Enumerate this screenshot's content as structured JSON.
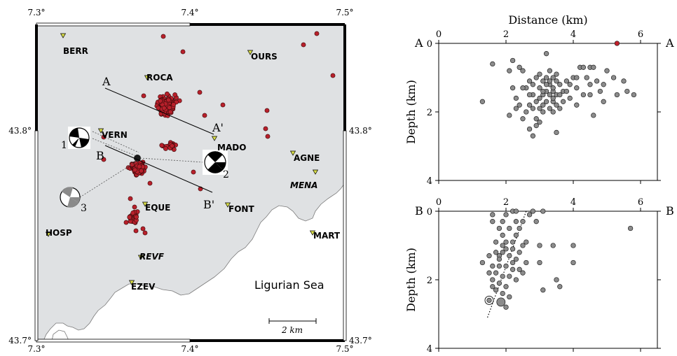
{
  "map": {
    "top_lon_labels": [
      "7.3°",
      "7.4°",
      "7.5°"
    ],
    "bottom_lon_labels": [
      "7.3°",
      "7.4°",
      "7.5°"
    ],
    "left_lat_labels": [
      "43.8°",
      "43.7°"
    ],
    "right_lat_labels": [
      "43.8°",
      "43.7°"
    ],
    "sea_label": "Ligurian Sea",
    "scale_label": "2 km",
    "land_color": "#dfe1e3",
    "sea_color": "#ffffff",
    "event_color": "#b8202b",
    "station_color": "#d8dd48",
    "stations": [
      {
        "name": "BERR",
        "italic": false
      },
      {
        "name": "OURS",
        "italic": false
      },
      {
        "name": "ROCA",
        "italic": false
      },
      {
        "name": "VERN",
        "italic": false
      },
      {
        "name": "MADO",
        "italic": false
      },
      {
        "name": "AGNE",
        "italic": false
      },
      {
        "name": "MENA",
        "italic": true
      },
      {
        "name": "EQUE",
        "italic": false
      },
      {
        "name": "FONT",
        "italic": false
      },
      {
        "name": "HOSP",
        "italic": false
      },
      {
        "name": "MART",
        "italic": false
      },
      {
        "name": "REVF",
        "italic": true
      },
      {
        "name": "EZEV",
        "italic": false
      }
    ],
    "profile_labels": [
      "A",
      "A'",
      "B",
      "B'"
    ],
    "mechanism_labels": [
      "1",
      "2",
      "3"
    ]
  },
  "chart_data": [
    {
      "type": "scatter",
      "title": "",
      "xlabel": "Distance (km)",
      "ylabel": "Depth (km)",
      "xlim": [
        0,
        6.5
      ],
      "ylim": [
        4,
        0
      ],
      "x_ticks": [
        "0",
        "2",
        "4",
        "6"
      ],
      "y_ticks": [
        "0",
        "2",
        "4"
      ],
      "left_label": "A",
      "right_label": "A",
      "point_color": "#8c8c8c",
      "highlight_color": "#c2202b",
      "highlight_points": [
        {
          "x": 5.3,
          "y": 0.0
        }
      ],
      "points": [
        {
          "x": 1.6,
          "y": 0.6
        },
        {
          "x": 1.3,
          "y": 1.7
        },
        {
          "x": 2.1,
          "y": 0.8
        },
        {
          "x": 2.2,
          "y": 0.5
        },
        {
          "x": 2.4,
          "y": 0.7
        },
        {
          "x": 2.5,
          "y": 0.8
        },
        {
          "x": 2.6,
          "y": 1.3
        },
        {
          "x": 2.7,
          "y": 1.1
        },
        {
          "x": 2.8,
          "y": 1.5
        },
        {
          "x": 2.9,
          "y": 1.0
        },
        {
          "x": 3.0,
          "y": 0.9
        },
        {
          "x": 3.1,
          "y": 1.1
        },
        {
          "x": 3.2,
          "y": 0.3
        },
        {
          "x": 3.3,
          "y": 0.8
        },
        {
          "x": 3.4,
          "y": 1.0
        },
        {
          "x": 3.5,
          "y": 0.9
        },
        {
          "x": 3.6,
          "y": 1.2
        },
        {
          "x": 3.7,
          "y": 1.4
        },
        {
          "x": 3.8,
          "y": 1.1
        },
        {
          "x": 3.9,
          "y": 1.2
        },
        {
          "x": 4.0,
          "y": 1.0
        },
        {
          "x": 4.1,
          "y": 1.3
        },
        {
          "x": 4.2,
          "y": 0.7
        },
        {
          "x": 4.3,
          "y": 0.7
        },
        {
          "x": 4.4,
          "y": 1.0
        },
        {
          "x": 4.5,
          "y": 0.7
        },
        {
          "x": 4.6,
          "y": 0.7
        },
        {
          "x": 4.7,
          "y": 1.1
        },
        {
          "x": 4.8,
          "y": 1.4
        },
        {
          "x": 4.9,
          "y": 1.2
        },
        {
          "x": 5.0,
          "y": 0.8
        },
        {
          "x": 5.2,
          "y": 1.0
        },
        {
          "x": 5.3,
          "y": 1.5
        },
        {
          "x": 5.5,
          "y": 1.1
        },
        {
          "x": 5.6,
          "y": 1.4
        },
        {
          "x": 5.8,
          "y": 1.5
        },
        {
          "x": 3.0,
          "y": 1.3
        },
        {
          "x": 3.0,
          "y": 1.6
        },
        {
          "x": 3.1,
          "y": 1.8
        },
        {
          "x": 3.2,
          "y": 1.4
        },
        {
          "x": 3.2,
          "y": 1.7
        },
        {
          "x": 3.3,
          "y": 1.2
        },
        {
          "x": 3.3,
          "y": 1.5
        },
        {
          "x": 3.3,
          "y": 1.9
        },
        {
          "x": 3.4,
          "y": 1.4
        },
        {
          "x": 3.4,
          "y": 1.7
        },
        {
          "x": 3.5,
          "y": 1.5
        },
        {
          "x": 3.5,
          "y": 1.8
        },
        {
          "x": 3.1,
          "y": 2.0
        },
        {
          "x": 3.4,
          "y": 2.0
        },
        {
          "x": 3.6,
          "y": 1.9
        },
        {
          "x": 3.7,
          "y": 1.7
        },
        {
          "x": 2.4,
          "y": 1.8
        },
        {
          "x": 2.6,
          "y": 2.0
        },
        {
          "x": 2.7,
          "y": 1.8
        },
        {
          "x": 2.8,
          "y": 1.9
        },
        {
          "x": 2.9,
          "y": 2.2
        },
        {
          "x": 2.9,
          "y": 2.4
        },
        {
          "x": 2.8,
          "y": 2.7
        },
        {
          "x": 2.7,
          "y": 2.5
        },
        {
          "x": 3.0,
          "y": 2.3
        },
        {
          "x": 2.5,
          "y": 2.2
        },
        {
          "x": 2.1,
          "y": 2.1
        },
        {
          "x": 3.5,
          "y": 2.6
        },
        {
          "x": 2.3,
          "y": 1.9
        },
        {
          "x": 4.1,
          "y": 1.8
        },
        {
          "x": 4.6,
          "y": 2.1
        },
        {
          "x": 4.5,
          "y": 1.5
        },
        {
          "x": 4.9,
          "y": 1.7
        },
        {
          "x": 4.3,
          "y": 1.5
        },
        {
          "x": 4.5,
          "y": 1.2
        },
        {
          "x": 3.9,
          "y": 1.6
        },
        {
          "x": 3.6,
          "y": 1.5
        },
        {
          "x": 4.1,
          "y": 1.0
        },
        {
          "x": 3.8,
          "y": 1.4
        },
        {
          "x": 2.9,
          "y": 1.7
        },
        {
          "x": 2.7,
          "y": 1.5
        },
        {
          "x": 2.5,
          "y": 1.3
        },
        {
          "x": 2.3,
          "y": 1.6
        },
        {
          "x": 2.2,
          "y": 1.3
        },
        {
          "x": 3.1,
          "y": 1.5
        },
        {
          "x": 3.2,
          "y": 1.0
        },
        {
          "x": 3.0,
          "y": 1.9
        },
        {
          "x": 3.1,
          "y": 1.4
        },
        {
          "x": 3.3,
          "y": 1.1
        },
        {
          "x": 3.4,
          "y": 1.3
        },
        {
          "x": 3.5,
          "y": 1.1
        },
        {
          "x": 3.4,
          "y": 1.6
        },
        {
          "x": 3.2,
          "y": 1.2
        },
        {
          "x": 2.8,
          "y": 1.2
        }
      ]
    },
    {
      "type": "scatter",
      "title": "",
      "xlabel": "",
      "ylabel": "Depth (km)",
      "xlim": [
        0,
        6.5
      ],
      "ylim": [
        4,
        0
      ],
      "x_ticks": [
        "0",
        "2",
        "4",
        "6"
      ],
      "y_ticks": [
        "0",
        "2",
        "4"
      ],
      "left_label": "B",
      "right_label": "B",
      "point_color": "#8c8c8c",
      "trend_line": [
        {
          "x": 1.45,
          "y": 3.1
        },
        {
          "x": 2.6,
          "y": 0.0
        }
      ],
      "large_points": [
        {
          "x": 1.85,
          "y": 2.65
        }
      ],
      "ringed_points": [
        {
          "x": 1.5,
          "y": 2.6
        }
      ],
      "points": [
        {
          "x": 1.6,
          "y": 0.1
        },
        {
          "x": 1.6,
          "y": 0.3
        },
        {
          "x": 1.8,
          "y": 0.5
        },
        {
          "x": 1.9,
          "y": 0.3
        },
        {
          "x": 2.0,
          "y": 0.1
        },
        {
          "x": 2.2,
          "y": 0.0
        },
        {
          "x": 2.5,
          "y": 0.3
        },
        {
          "x": 2.4,
          "y": 0.5
        },
        {
          "x": 2.3,
          "y": 0.0
        },
        {
          "x": 2.8,
          "y": 0.0
        },
        {
          "x": 2.9,
          "y": 0.3
        },
        {
          "x": 3.1,
          "y": 0.0
        },
        {
          "x": 2.7,
          "y": 0.1
        },
        {
          "x": 2.3,
          "y": 0.7
        },
        {
          "x": 2.2,
          "y": 0.9
        },
        {
          "x": 2.0,
          "y": 0.9
        },
        {
          "x": 1.9,
          "y": 1.0
        },
        {
          "x": 1.7,
          "y": 1.2
        },
        {
          "x": 1.8,
          "y": 1.3
        },
        {
          "x": 2.0,
          "y": 1.1
        },
        {
          "x": 2.1,
          "y": 1.3
        },
        {
          "x": 2.2,
          "y": 1.1
        },
        {
          "x": 2.4,
          "y": 1.2
        },
        {
          "x": 2.3,
          "y": 1.4
        },
        {
          "x": 1.5,
          "y": 1.3
        },
        {
          "x": 1.3,
          "y": 1.5
        },
        {
          "x": 1.6,
          "y": 1.6
        },
        {
          "x": 1.8,
          "y": 1.6
        },
        {
          "x": 2.0,
          "y": 1.6
        },
        {
          "x": 2.2,
          "y": 1.7
        },
        {
          "x": 2.4,
          "y": 1.7
        },
        {
          "x": 2.5,
          "y": 1.8
        },
        {
          "x": 1.7,
          "y": 1.8
        },
        {
          "x": 1.9,
          "y": 1.9
        },
        {
          "x": 2.1,
          "y": 1.9
        },
        {
          "x": 2.3,
          "y": 2.0
        },
        {
          "x": 1.6,
          "y": 2.0
        },
        {
          "x": 1.8,
          "y": 2.1
        },
        {
          "x": 2.0,
          "y": 2.2
        },
        {
          "x": 1.7,
          "y": 2.3
        },
        {
          "x": 1.9,
          "y": 2.4
        },
        {
          "x": 2.1,
          "y": 2.5
        },
        {
          "x": 1.6,
          "y": 2.2
        },
        {
          "x": 2.0,
          "y": 2.8
        },
        {
          "x": 3.1,
          "y": 2.3
        },
        {
          "x": 3.5,
          "y": 2.0
        },
        {
          "x": 3.6,
          "y": 2.2
        },
        {
          "x": 3.0,
          "y": 1.0
        },
        {
          "x": 3.4,
          "y": 1.0
        },
        {
          "x": 4.0,
          "y": 1.0
        },
        {
          "x": 4.0,
          "y": 1.5
        },
        {
          "x": 3.0,
          "y": 1.5
        },
        {
          "x": 2.6,
          "y": 0.9
        },
        {
          "x": 5.7,
          "y": 0.5
        },
        {
          "x": 2.5,
          "y": 1.0
        },
        {
          "x": 2.6,
          "y": 1.5
        },
        {
          "x": 1.9,
          "y": 0.7
        },
        {
          "x": 2.1,
          "y": 0.5
        },
        {
          "x": 1.7,
          "y": 0.9
        },
        {
          "x": 2.2,
          "y": 1.5
        },
        {
          "x": 1.8,
          "y": 1.4
        },
        {
          "x": 1.5,
          "y": 1.8
        },
        {
          "x": 2.3,
          "y": 0.3
        },
        {
          "x": 1.9,
          "y": 1.2
        }
      ]
    }
  ]
}
